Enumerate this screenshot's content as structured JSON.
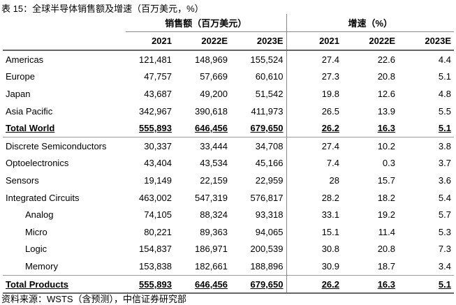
{
  "title": "表 15：全球半导体销售额及增速（百万美元，%）",
  "table": {
    "group_headers": [
      "销售额（百万美元）",
      "增速（%）"
    ],
    "columns": [
      "2021",
      "2022E",
      "2023E",
      "2021",
      "2022E",
      "2023E"
    ],
    "rows": [
      [
        "Americas",
        "121,481",
        "148,969",
        "155,524",
        "27.4",
        "22.6",
        "4.4"
      ],
      [
        "Europe",
        "47,757",
        "57,669",
        "60,610",
        "27.3",
        "20.8",
        "5.1"
      ],
      [
        "Japan",
        "43,687",
        "49,200",
        "51,542",
        "19.8",
        "12.6",
        "4.8"
      ],
      [
        "Asia Pacific",
        "342,967",
        "390,618",
        "411,973",
        "26.5",
        "13.9",
        "5.5"
      ],
      [
        "Total World",
        "555,893",
        "646,456",
        "679,650",
        "26.2",
        "16.3",
        "5.1"
      ],
      [
        "Discrete Semiconductors",
        "30,337",
        "33,444",
        "34,708",
        "27.4",
        "10.2",
        "3.8"
      ],
      [
        "Optoelectronics",
        "43,404",
        "43,534",
        "45,166",
        "7.4",
        "0.3",
        "3.7"
      ],
      [
        "Sensors",
        "19,149",
        "22,159",
        "22,959",
        "28",
        "15.7",
        "3.6"
      ],
      [
        "Integrated Circuits",
        "463,002",
        "547,319",
        "576,817",
        "28.2",
        "18.2",
        "5.4"
      ],
      [
        "Analog",
        "74,105",
        "88,324",
        "93,318",
        "33.1",
        "19.2",
        "5.7"
      ],
      [
        "Micro",
        "80,221",
        "89,363",
        "94,065",
        "15.1",
        "11.4",
        "5.3"
      ],
      [
        "Logic",
        "154,837",
        "186,971",
        "200,539",
        "30.8",
        "20.8",
        "7.3"
      ],
      [
        "Memory",
        "153,838",
        "182,661",
        "188,896",
        "30.9",
        "18.7",
        "3.4"
      ],
      [
        "Total Products",
        "555,893",
        "646,456",
        "679,650",
        "26.2",
        "16.3",
        "5.1"
      ]
    ]
  },
  "source": "资料来源：WSTS（含预测），中信证券研究部"
}
